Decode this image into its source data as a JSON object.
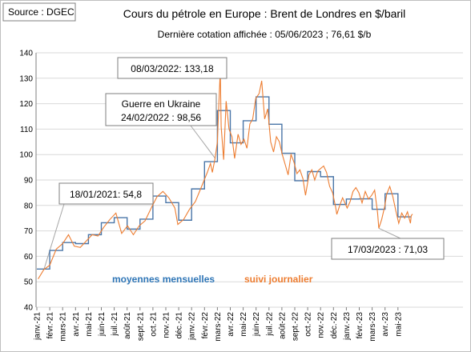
{
  "source_label": "Source : DGEC",
  "title": "Cours du pétrole en Europe : Brent de Londres en $/baril",
  "subtitle": "Dernière cotation affichée : 05/06/2023 ; 76,61 $/b",
  "colors": {
    "monthly": "#4a76a8",
    "daily": "#ed7d31",
    "monthly_label": "#2e75b6",
    "daily_label": "#ed7d31",
    "grid": "#d9d9d9",
    "callout_line": "#a6a6a6"
  },
  "chart_data": {
    "type": "line",
    "ylim": [
      40,
      140
    ],
    "yticks": [
      40,
      50,
      60,
      70,
      80,
      90,
      100,
      110,
      120,
      130,
      140
    ],
    "xlim": [
      "2021-01-01",
      "2023-06-30"
    ],
    "grid": "horizontal",
    "categories": [
      "janv.-21",
      "févr.-21",
      "mars-21",
      "avr.-21",
      "mai-21",
      "juin-21",
      "juil.-21",
      "août-21",
      "sept.-21",
      "oct.-21",
      "nov.-21",
      "déc.-21",
      "janv.-22",
      "févr.-22",
      "mars-22",
      "avr.-22",
      "mai-22",
      "juin-22",
      "juil.-22",
      "août-22",
      "sept.-22",
      "oct.-22",
      "nov.-22",
      "déc.-22",
      "janv.-23",
      "févr.-23",
      "mars-23",
      "avr.-23",
      "mai-23"
    ],
    "series": [
      {
        "name": "moyennes mensuelles",
        "values": [
          55,
          62.3,
          65.4,
          65,
          68.5,
          73.2,
          75.2,
          70.7,
          74.6,
          83.7,
          81.1,
          74.2,
          86.5,
          97.2,
          117.3,
          104.6,
          113.3,
          122.7,
          111.9,
          100.5,
          89.7,
          93.3,
          91.3,
          80.4,
          82.5,
          82.6,
          78.5,
          84.6,
          75.5
        ]
      },
      {
        "name": "suivi journalier",
        "points": [
          [
            "2021-01-04",
            51.1
          ],
          [
            "2021-01-18",
            54.8
          ],
          [
            "2021-02-01",
            56.5
          ],
          [
            "2021-02-15",
            62.8
          ],
          [
            "2021-03-01",
            65.0
          ],
          [
            "2021-03-15",
            68.5
          ],
          [
            "2021-03-29",
            64.0
          ],
          [
            "2021-04-12",
            63.5
          ],
          [
            "2021-04-26",
            66.0
          ],
          [
            "2021-05-10",
            68.5
          ],
          [
            "2021-05-24",
            68.0
          ],
          [
            "2021-06-07",
            71.5
          ],
          [
            "2021-06-21",
            74.5
          ],
          [
            "2021-07-05",
            77.0
          ],
          [
            "2021-07-19",
            69.0
          ],
          [
            "2021-08-02",
            72.0
          ],
          [
            "2021-08-16",
            68.5
          ],
          [
            "2021-08-30",
            72.0
          ],
          [
            "2021-09-13",
            74.0
          ],
          [
            "2021-09-27",
            79.0
          ],
          [
            "2021-10-11",
            83.5
          ],
          [
            "2021-10-25",
            85.5
          ],
          [
            "2021-11-08",
            83.0
          ],
          [
            "2021-11-22",
            79.0
          ],
          [
            "2021-11-29",
            72.5
          ],
          [
            "2021-12-13",
            74.5
          ],
          [
            "2021-12-27",
            78.5
          ],
          [
            "2022-01-10",
            81.5
          ],
          [
            "2022-01-24",
            87.0
          ],
          [
            "2022-02-07",
            93.0
          ],
          [
            "2022-02-14",
            96.5
          ],
          [
            "2022-02-18",
            93.0
          ],
          [
            "2022-02-24",
            98.56
          ],
          [
            "2022-03-01",
            105.0
          ],
          [
            "2022-03-04",
            118.0
          ],
          [
            "2022-03-08",
            133.18
          ],
          [
            "2022-03-10",
            111.0
          ],
          [
            "2022-03-16",
            98.0
          ],
          [
            "2022-03-22",
            121.0
          ],
          [
            "2022-03-29",
            110.0
          ],
          [
            "2022-04-05",
            107.0
          ],
          [
            "2022-04-11",
            98.5
          ],
          [
            "2022-04-19",
            108.0
          ],
          [
            "2022-04-26",
            104.0
          ],
          [
            "2022-05-03",
            106.0
          ],
          [
            "2022-05-10",
            102.5
          ],
          [
            "2022-05-17",
            112.0
          ],
          [
            "2022-05-24",
            114.0
          ],
          [
            "2022-05-31",
            122.0
          ],
          [
            "2022-06-08",
            124.0
          ],
          [
            "2022-06-14",
            129.0
          ],
          [
            "2022-06-21",
            114.0
          ],
          [
            "2022-06-28",
            118.0
          ],
          [
            "2022-07-05",
            105.0
          ],
          [
            "2022-07-12",
            101.0
          ],
          [
            "2022-07-19",
            107.0
          ],
          [
            "2022-07-26",
            105.0
          ],
          [
            "2022-08-02",
            100.0
          ],
          [
            "2022-08-09",
            96.0
          ],
          [
            "2022-08-16",
            92.0
          ],
          [
            "2022-08-23",
            100.0
          ],
          [
            "2022-08-30",
            97.0
          ],
          [
            "2022-09-06",
            92.5
          ],
          [
            "2022-09-13",
            94.0
          ],
          [
            "2022-09-20",
            90.5
          ],
          [
            "2022-09-26",
            84.0
          ],
          [
            "2022-10-04",
            92.0
          ],
          [
            "2022-10-11",
            94.0
          ],
          [
            "2022-10-18",
            90.0
          ],
          [
            "2022-10-25",
            93.5
          ],
          [
            "2022-11-01",
            94.5
          ],
          [
            "2022-11-08",
            95.5
          ],
          [
            "2022-11-15",
            93.0
          ],
          [
            "2022-11-22",
            87.5
          ],
          [
            "2022-11-29",
            85.0
          ],
          [
            "2022-12-06",
            79.5
          ],
          [
            "2022-12-09",
            76.5
          ],
          [
            "2022-12-16",
            80.0
          ],
          [
            "2022-12-23",
            83.0
          ],
          [
            "2023-01-03",
            79.0
          ],
          [
            "2023-01-10",
            81.5
          ],
          [
            "2023-01-17",
            85.5
          ],
          [
            "2023-01-24",
            87.0
          ],
          [
            "2023-01-31",
            85.0
          ],
          [
            "2023-02-07",
            81.0
          ],
          [
            "2023-02-14",
            85.5
          ],
          [
            "2023-02-21",
            82.5
          ],
          [
            "2023-02-28",
            84.0
          ],
          [
            "2023-03-07",
            86.0
          ],
          [
            "2023-03-14",
            77.0
          ],
          [
            "2023-03-17",
            71.03
          ],
          [
            "2023-03-24",
            74.5
          ],
          [
            "2023-03-31",
            79.5
          ],
          [
            "2023-04-05",
            84.5
          ],
          [
            "2023-04-12",
            87.5
          ],
          [
            "2023-04-19",
            83.5
          ],
          [
            "2023-04-26",
            78.0
          ],
          [
            "2023-05-03",
            73.0
          ],
          [
            "2023-05-10",
            77.0
          ],
          [
            "2023-05-17",
            75.0
          ],
          [
            "2023-05-24",
            77.5
          ],
          [
            "2023-05-31",
            73.0
          ],
          [
            "2023-06-02",
            76.0
          ],
          [
            "2023-06-05",
            76.61
          ]
        ]
      }
    ],
    "annotations": [
      {
        "text": "08/03/2022: 133,18",
        "date": "2022-03-08",
        "value": 133.18
      },
      {
        "text_line1": "Guerre en Ukraine",
        "text_line2": "24/02/2022 : 98,56",
        "date": "2022-02-24",
        "value": 98.56
      },
      {
        "text": "18/01/2021: 54,8",
        "date": "2021-01-18",
        "value": 54.8
      },
      {
        "text": "17/03/2023 : 71,03",
        "date": "2023-03-17",
        "value": 71.03
      }
    ],
    "series_labels": [
      "moyennes mensuelles",
      "suivi journalier"
    ]
  }
}
